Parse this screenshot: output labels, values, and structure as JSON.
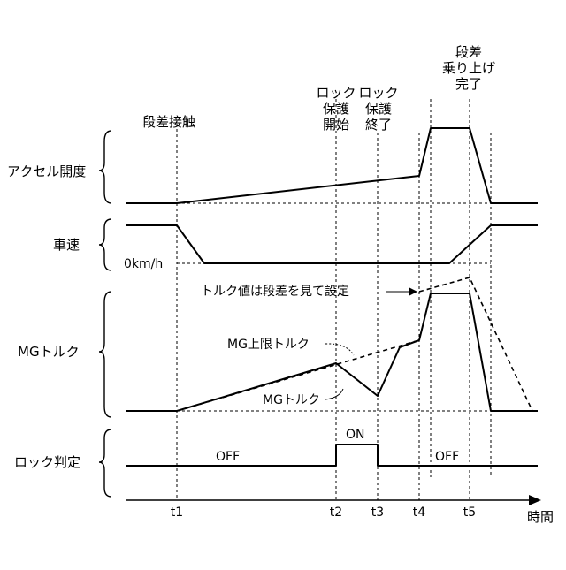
{
  "rows": {
    "accel": "アクセル開度",
    "speed": "車速",
    "mg_torque": "MGトルク",
    "lock": "ロック判定"
  },
  "speed_zero_label": "0km/h",
  "events": {
    "step_contact": "段差接触",
    "lock_start": [
      "ロック",
      "保護",
      "開始"
    ],
    "lock_end": [
      "ロック",
      "保護",
      "終了"
    ],
    "climb_done": [
      "段差",
      "乗り上げ",
      "完了"
    ]
  },
  "annotations": {
    "torque_set_by_step": "トルク値は段差を見て設定",
    "mg_upper_limit": "MG上限トルク",
    "mg_torque": "MGトルク"
  },
  "lock_states": {
    "off1": "OFF",
    "on": "ON",
    "off2": "OFF"
  },
  "time_ticks": [
    "t1",
    "t2",
    "t3",
    "t4",
    "t5"
  ],
  "time_axis_label": "時間"
}
